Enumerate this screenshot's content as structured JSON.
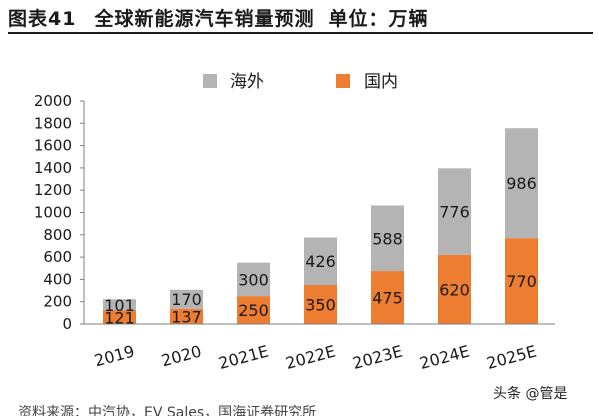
{
  "header": {
    "figure_no": "图表41",
    "title": "全球新能源汽车销量预测",
    "unit": "单位：万辆"
  },
  "chart_data": {
    "type": "bar",
    "stacked": true,
    "categories": [
      "2019",
      "2020",
      "2021E",
      "2022E",
      "2023E",
      "2024E",
      "2025E"
    ],
    "series": [
      {
        "name": "国内",
        "color": "#ED7D31",
        "values": [
          121,
          137,
          250,
          350,
          475,
          620,
          770
        ]
      },
      {
        "name": "海外",
        "color": "#B4B4B4",
        "values": [
          101,
          170,
          300,
          426,
          588,
          776,
          986
        ]
      }
    ],
    "ylim": [
      0,
      2000
    ],
    "yticks": [
      0,
      200,
      400,
      600,
      800,
      1000,
      1200,
      1400,
      1600,
      1800,
      2000
    ],
    "legend": [
      "海外",
      "国内"
    ],
    "legend_position": "top",
    "grid": false,
    "data_labels": true
  },
  "footer": {
    "source": "资料来源：中汽协，EV Sales，国海证券研究所"
  },
  "watermark": {
    "text": "头条 @管是"
  }
}
